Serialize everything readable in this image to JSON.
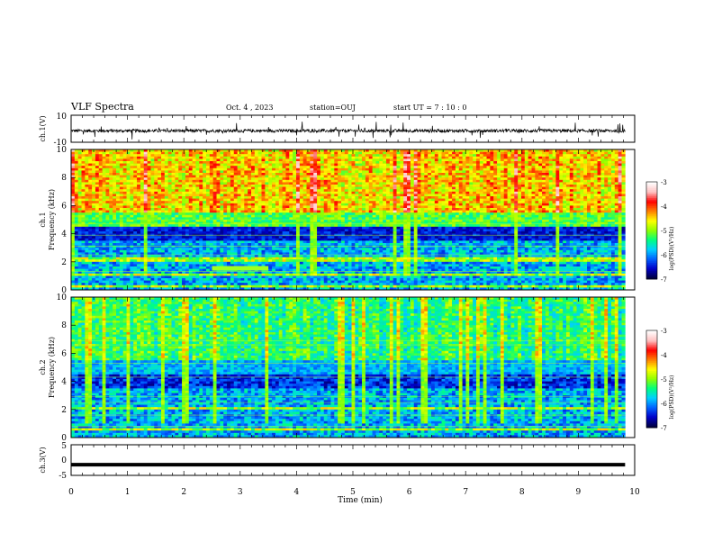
{
  "header": {
    "title": "VLF Spectra",
    "date": "Oct. 4 , 2023",
    "station": "station=OUJ",
    "start_ut": "start UT =  7 : 10 : 0"
  },
  "chart_data": [
    {
      "type": "line",
      "name": "ch1-waveform",
      "ylabel": "ch.1(V)",
      "ylim": [
        -10,
        10
      ],
      "yticks": [
        "10",
        "-10"
      ],
      "xlim": [
        0,
        10
      ],
      "description_values": {
        "baseline_v": -1.5,
        "noise_amplitude_v": 1.2
      }
    },
    {
      "type": "heatmap",
      "name": "ch1-spectrogram",
      "ylabel": "ch.1\nFrequency (kHz)",
      "ylim": [
        0,
        10
      ],
      "yticks": [
        "0",
        "2",
        "4",
        "6",
        "8",
        "10"
      ],
      "xlim": [
        0,
        9.83
      ],
      "colorbar": {
        "label": "log(PSD)(V²/Hz)",
        "range": [
          -7,
          -3
        ],
        "ticks": [
          "-3",
          "-4",
          "-5",
          "-6",
          "-7"
        ]
      }
    },
    {
      "type": "heatmap",
      "name": "ch2-spectrogram",
      "ylabel": "ch.2\nFrequency (kHz)",
      "ylim": [
        0,
        10
      ],
      "yticks": [
        "0",
        "2",
        "4",
        "6",
        "8",
        "10"
      ],
      "xlim": [
        0,
        9.83
      ],
      "colorbar": {
        "label": "log(PSD)(V²/Hz)",
        "range": [
          -7,
          -3
        ],
        "ticks": [
          "-3",
          "-4",
          "-5",
          "-6",
          "-7"
        ]
      }
    },
    {
      "type": "line",
      "name": "ch3-trace",
      "ylabel": "ch.3(V)",
      "ylim": [
        -5,
        5
      ],
      "yticks": [
        "5",
        "0",
        "-5"
      ],
      "value_v": -1.5,
      "xlim": [
        0,
        9.83
      ]
    }
  ],
  "xaxis": {
    "label": "Time (min)",
    "ticks": [
      "0",
      "1",
      "2",
      "3",
      "4",
      "5",
      "6",
      "7",
      "8",
      "9",
      "10"
    ]
  },
  "colors": {
    "colormap": [
      "#000040",
      "#0000c8",
      "#0060ff",
      "#00d0ff",
      "#00ff80",
      "#90ff00",
      "#ffff00",
      "#ff8000",
      "#ff0000",
      "#ffc0c0",
      "#ffffff"
    ]
  }
}
